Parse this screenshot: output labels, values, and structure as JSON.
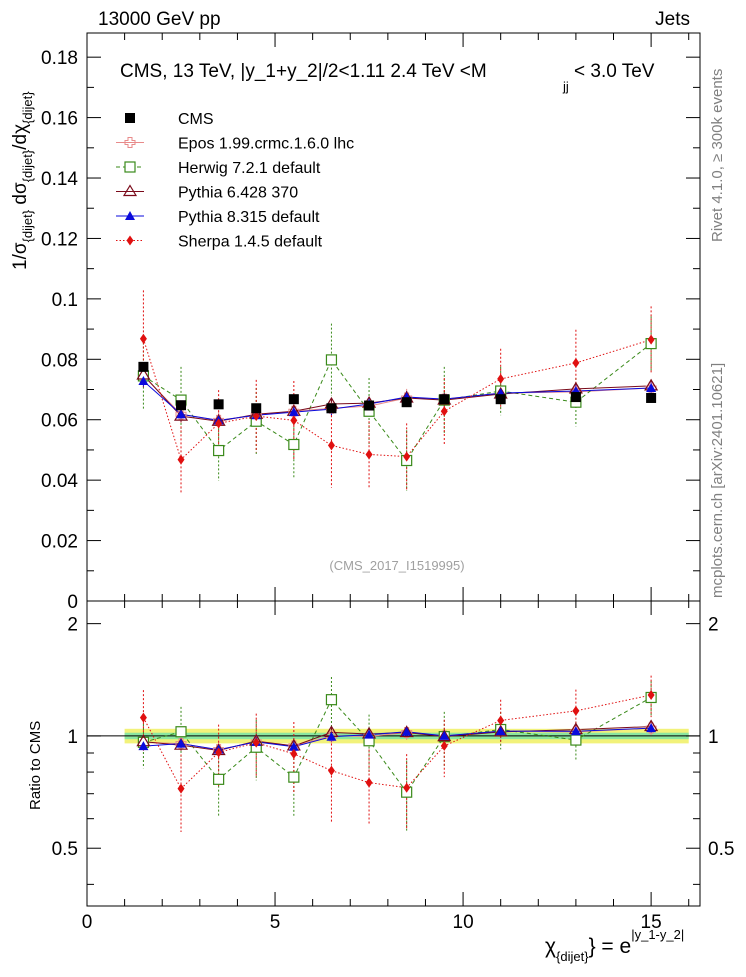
{
  "header": {
    "left": "13000 GeV pp",
    "right": "Jets"
  },
  "side": {
    "rivet": "Rivet 4.1.0, ≥ 300k events",
    "mcplots": "mcplots.cern.ch [arXiv:2401.10621]"
  },
  "chart_data": {
    "type": "scatter",
    "title_main": "CMS, 13 TeV, |y_1+y_2|/2<1.11 2.4 TeV <M",
    "title_sub": "jj",
    "title_end": "< 3.0 TeV",
    "watermark": "(CMS_2017_I1519995)",
    "ylabel_top": "1/σ{dijet} dσ{dijet}/dχ{dijet}",
    "ylabel_parts": [
      "1/σ",
      "{dijet}",
      " dσ",
      "{dijet}",
      "/dχ",
      "{dijet}"
    ],
    "ylabel_bottom": "Ratio to CMS",
    "xlabel_parts": [
      "χ",
      "{dijet}",
      "} = e",
      "|y_1-y_2|"
    ],
    "xlim": [
      0,
      16.3
    ],
    "ylim_top": [
      0,
      0.188
    ],
    "ylim_bottom": [
      0.35,
      2.3
    ],
    "yticks_top": [
      "0",
      "0.02",
      "0.04",
      "0.06",
      "0.08",
      "0.1",
      "0.12",
      "0.14",
      "0.16",
      "0.18"
    ],
    "yticks_bottom": [
      "0.5",
      "1",
      "2"
    ],
    "xticks": [
      "0",
      "5",
      "10",
      "15"
    ],
    "x": [
      1.5,
      2.5,
      3.5,
      4.5,
      5.5,
      6.5,
      7.5,
      8.5,
      9.5,
      11,
      13,
      15
    ],
    "data": {
      "name": "CMS",
      "values": [
        0.0775,
        0.0648,
        0.0651,
        0.0638,
        0.0668,
        0.0638,
        0.0647,
        0.0658,
        0.0668,
        0.0668,
        0.0675,
        0.0672
      ],
      "band_inner": 0.02,
      "band_outer": 0.045
    },
    "series": [
      {
        "name": "Epos 1.99.crmc.1.6.0 lhc",
        "color": "#e88a8a",
        "marker": "cross",
        "values": [
          0.0745,
          0.0618,
          0.0598,
          0.0615,
          0.0628,
          0.0638,
          0.0645,
          0.0672,
          0.0668,
          0.0688,
          0.0692,
          0.0705
        ],
        "err": [
          0.003,
          0.003,
          0.003,
          0.003,
          0.003,
          0.003,
          0.003,
          0.003,
          0.003,
          0.003,
          0.003,
          0.003
        ]
      },
      {
        "name": "Herwig 7.2.1 default",
        "color": "#3a8a1a",
        "marker": "open-square",
        "dash": "4,3",
        "values": [
          0.0745,
          0.0665,
          0.0498,
          0.0595,
          0.0518,
          0.0798,
          0.0628,
          0.0465,
          0.0665,
          0.0695,
          0.0658,
          0.0852
        ],
        "err": [
          0.011,
          0.011,
          0.01,
          0.011,
          0.011,
          0.012,
          0.011,
          0.01,
          0.011,
          0.008,
          0.008,
          0.009
        ]
      },
      {
        "name": "Pythia 6.428 370",
        "color": "#7a0a1a",
        "marker": "open-triangle",
        "values": [
          0.0748,
          0.0612,
          0.0595,
          0.0618,
          0.0628,
          0.0652,
          0.0655,
          0.0672,
          0.0665,
          0.0685,
          0.0702,
          0.0712
        ],
        "err": [
          0.002,
          0.002,
          0.002,
          0.002,
          0.002,
          0.002,
          0.002,
          0.002,
          0.002,
          0.002,
          0.002,
          0.002
        ]
      },
      {
        "name": "Pythia 8.315 default",
        "color": "#0a0adc",
        "marker": "triangle",
        "values": [
          0.0728,
          0.0618,
          0.0598,
          0.0615,
          0.0625,
          0.0635,
          0.0652,
          0.0675,
          0.0668,
          0.0688,
          0.0695,
          0.0705
        ],
        "err": [
          0.002,
          0.002,
          0.002,
          0.002,
          0.002,
          0.002,
          0.002,
          0.002,
          0.002,
          0.002,
          0.002,
          0.002
        ]
      },
      {
        "name": "Sherpa 1.4.5 default",
        "color": "#e01010",
        "marker": "diamond",
        "dash": "1.5,2",
        "values": [
          0.0868,
          0.0468,
          0.0588,
          0.0612,
          0.0598,
          0.0515,
          0.0485,
          0.0478,
          0.0628,
          0.0735,
          0.0788,
          0.0865
        ],
        "err": [
          0.016,
          0.011,
          0.011,
          0.012,
          0.013,
          0.014,
          0.011,
          0.011,
          0.011,
          0.01,
          0.011,
          0.011
        ]
      }
    ]
  }
}
